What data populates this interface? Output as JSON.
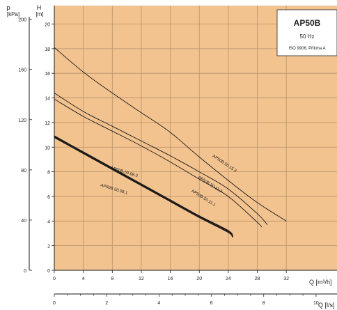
{
  "chart_data": {
    "type": "line",
    "info_box": {
      "title": "AP50B",
      "frequency": "50 Hz",
      "standard": "ISO 9906, Příloha A"
    },
    "axes": {
      "x_flow_m3h": {
        "label": "Q [m³/h]",
        "ticks": [
          0,
          4,
          8,
          12,
          16,
          20,
          24,
          28,
          32
        ],
        "range": [
          0,
          39
        ]
      },
      "x_flow_ls": {
        "label": "Q [l/s]",
        "ticks": [
          0,
          2,
          4,
          6,
          8,
          10
        ],
        "range": [
          0,
          10.8
        ]
      },
      "y_head_m": {
        "label": "H [m]",
        "ticks": [
          0,
          2,
          4,
          6,
          8,
          10,
          12,
          14,
          16,
          18,
          20
        ],
        "range": [
          0,
          21.5
        ]
      },
      "y_pressure_kpa": {
        "label": "[kPa]",
        "unit_top": "p",
        "ticks": [
          0,
          40,
          80,
          120,
          160,
          200
        ]
      }
    },
    "grid": true,
    "series": [
      {
        "name": "AP50B.50.15.3",
        "bold": false,
        "points": [
          [
            0,
            18.1
          ],
          [
            4,
            16.1
          ],
          [
            8,
            14.4
          ],
          [
            12,
            12.8
          ],
          [
            16,
            11.2
          ],
          [
            20,
            9.2
          ],
          [
            24,
            7.3
          ],
          [
            28,
            5.5
          ],
          [
            32,
            4.0
          ]
        ]
      },
      {
        "name": "AP50B.50.11.3",
        "bold": false,
        "points": [
          [
            0,
            14.4
          ],
          [
            4,
            12.9
          ],
          [
            8,
            11.7
          ],
          [
            12,
            10.5
          ],
          [
            16,
            9.3
          ],
          [
            20,
            8.0
          ],
          [
            24,
            6.6
          ],
          [
            28,
            4.6
          ],
          [
            29.4,
            3.7
          ]
        ]
      },
      {
        "name": "AP50B.50.11.1",
        "bold": false,
        "points": [
          [
            0,
            13.9
          ],
          [
            4,
            12.5
          ],
          [
            8,
            11.3
          ],
          [
            12,
            10.1
          ],
          [
            16,
            8.8
          ],
          [
            20,
            7.4
          ],
          [
            24,
            6.0
          ],
          [
            28,
            3.9
          ],
          [
            28.6,
            3.5
          ]
        ]
      },
      {
        "name": "AP50B.50.08.3",
        "bold": true,
        "points": [
          [
            0,
            10.9
          ],
          [
            4,
            9.6
          ],
          [
            8,
            8.3
          ],
          [
            12,
            7.0
          ],
          [
            16,
            5.7
          ],
          [
            20,
            4.4
          ],
          [
            24,
            3.2
          ],
          [
            24.6,
            2.7
          ]
        ]
      },
      {
        "name": "AP50B.50.08.1",
        "bold": true,
        "points": [
          [
            0,
            10.8
          ],
          [
            4,
            9.5
          ],
          [
            8,
            8.2
          ],
          [
            12,
            6.9
          ],
          [
            16,
            5.6
          ],
          [
            20,
            4.3
          ],
          [
            24,
            3.1
          ],
          [
            24.6,
            2.7
          ]
        ]
      }
    ],
    "curve_labels": [
      {
        "text": "AP50B.50.15.3",
        "at": [
          23.4,
          8.6
        ],
        "angle": 34
      },
      {
        "text": "AP50B.50.11.3",
        "at": [
          21.4,
          6.9
        ],
        "angle": 32
      },
      {
        "text": "AP50B.50.11.1",
        "at": [
          20.5,
          5.8
        ],
        "angle": 32
      },
      {
        "text": "AP50B.50.08.3",
        "at": [
          9.6,
          7.9
        ],
        "angle": 17
      },
      {
        "text": "AP50B.50.08.1",
        "at": [
          8.2,
          6.5
        ],
        "angle": 17
      }
    ],
    "colors": {
      "background": "#f3c38f",
      "grid": "#b5926a",
      "curve": "#1a1a1a",
      "axis": "#1a1a1a"
    }
  }
}
